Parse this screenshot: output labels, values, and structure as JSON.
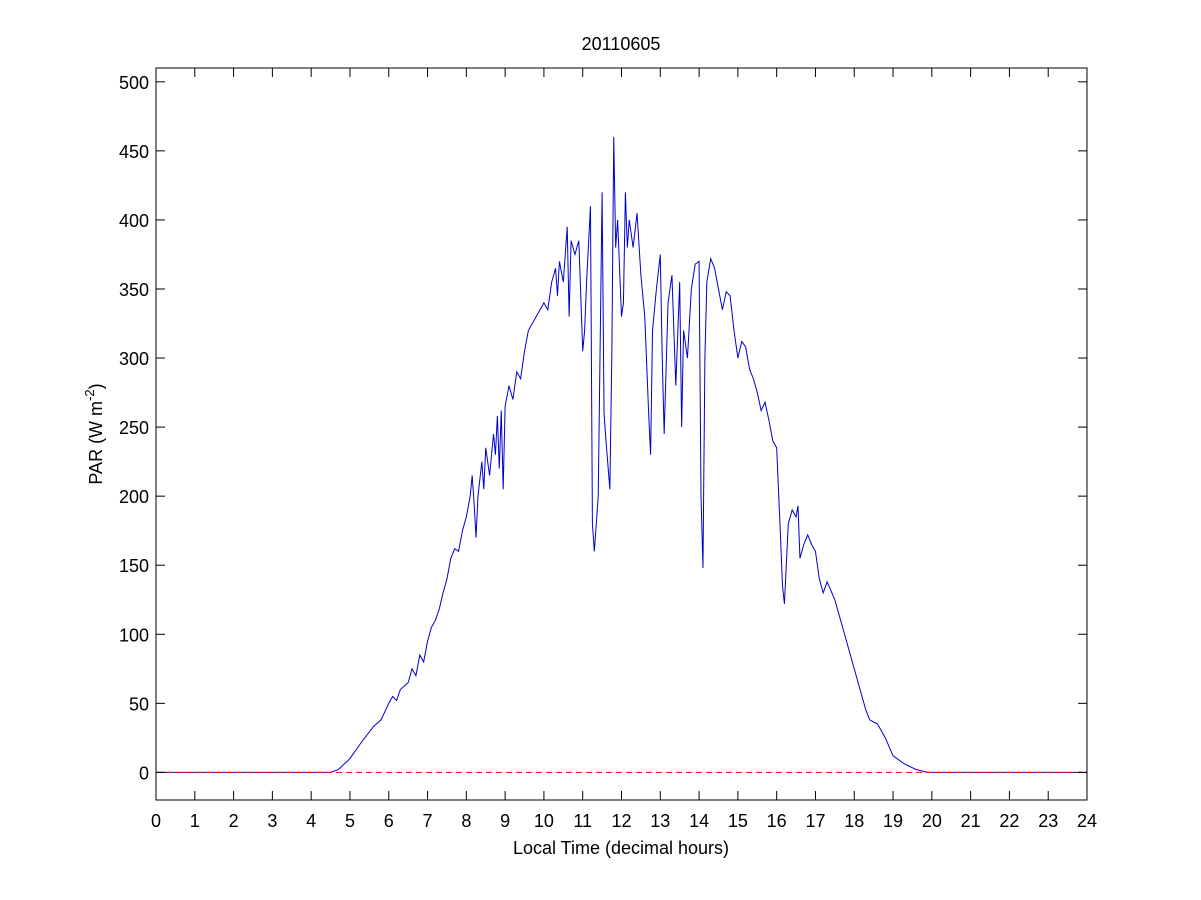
{
  "chart_data": {
    "type": "line",
    "title": "20110605",
    "xlabel": "Local Time (decimal hours)",
    "ylabel": [
      "PAR (W m",
      "-2",
      ")"
    ],
    "xlim": [
      0,
      24
    ],
    "ylim": [
      -20,
      510
    ],
    "xticks": [
      0,
      1,
      2,
      3,
      4,
      5,
      6,
      7,
      8,
      9,
      10,
      11,
      12,
      13,
      14,
      15,
      16,
      17,
      18,
      19,
      20,
      21,
      22,
      23,
      24
    ],
    "yticks": [
      0,
      50,
      100,
      150,
      200,
      250,
      300,
      350,
      400,
      450,
      500
    ],
    "grid": false,
    "series": [
      {
        "color": "#0000cc",
        "linestyle": "solid",
        "x": [
          0,
          4.5,
          4.7,
          5,
          5.3,
          5.6,
          5.8,
          6,
          6.1,
          6.2,
          6.3,
          6.5,
          6.6,
          6.7,
          6.8,
          6.9,
          7,
          7.1,
          7.2,
          7.3,
          7.4,
          7.5,
          7.6,
          7.7,
          7.8,
          7.9,
          8,
          8.1,
          8.15,
          8.2,
          8.25,
          8.3,
          8.4,
          8.45,
          8.5,
          8.6,
          8.7,
          8.75,
          8.8,
          8.85,
          8.9,
          8.95,
          9,
          9.1,
          9.2,
          9.3,
          9.4,
          9.5,
          9.6,
          9.8,
          10,
          10.1,
          10.2,
          10.3,
          10.35,
          10.4,
          10.5,
          10.6,
          10.65,
          10.7,
          10.8,
          10.9,
          11,
          11.05,
          11.1,
          11.2,
          11.25,
          11.3,
          11.4,
          11.5,
          11.55,
          11.6,
          11.7,
          11.75,
          11.8,
          11.85,
          11.9,
          12,
          12.05,
          12.1,
          12.15,
          12.2,
          12.3,
          12.4,
          12.5,
          12.6,
          12.7,
          12.75,
          12.8,
          12.9,
          13,
          13.05,
          13.1,
          13.2,
          13.3,
          13.4,
          13.5,
          13.55,
          13.6,
          13.7,
          13.8,
          13.9,
          14,
          14.05,
          14.1,
          14.15,
          14.2,
          14.3,
          14.4,
          14.5,
          14.6,
          14.7,
          14.8,
          14.9,
          15,
          15.1,
          15.2,
          15.3,
          15.4,
          15.5,
          15.6,
          15.7,
          15.8,
          15.9,
          16,
          16.1,
          16.15,
          16.2,
          16.3,
          16.4,
          16.5,
          16.55,
          16.6,
          16.7,
          16.8,
          16.9,
          17,
          17.1,
          17.2,
          17.3,
          17.5,
          17.7,
          17.9,
          18.1,
          18.3,
          18.4,
          18.6,
          18.8,
          19,
          19.3,
          19.6,
          19.9,
          24
        ],
        "values": [
          0,
          0,
          2,
          10,
          22,
          33,
          38,
          50,
          55,
          52,
          60,
          65,
          75,
          70,
          85,
          80,
          95,
          105,
          110,
          118,
          130,
          140,
          155,
          162,
          160,
          175,
          185,
          200,
          215,
          195,
          170,
          200,
          225,
          205,
          235,
          215,
          245,
          230,
          258,
          220,
          262,
          205,
          265,
          280,
          270,
          290,
          285,
          305,
          320,
          330,
          340,
          335,
          355,
          365,
          345,
          370,
          355,
          395,
          330,
          385,
          375,
          385,
          305,
          320,
          355,
          410,
          180,
          160,
          200,
          420,
          260,
          240,
          205,
          300,
          460,
          380,
          400,
          330,
          340,
          420,
          380,
          400,
          380,
          405,
          360,
          330,
          260,
          230,
          320,
          350,
          375,
          300,
          245,
          340,
          360,
          280,
          355,
          250,
          320,
          300,
          350,
          368,
          370,
          200,
          148,
          300,
          355,
          372,
          365,
          350,
          335,
          348,
          345,
          320,
          300,
          312,
          308,
          292,
          285,
          275,
          262,
          268,
          255,
          240,
          235,
          170,
          135,
          122,
          180,
          190,
          185,
          193,
          155,
          165,
          172,
          165,
          160,
          140,
          130,
          138,
          125,
          105,
          85,
          65,
          45,
          38,
          35,
          25,
          12,
          6,
          2,
          0,
          0
        ]
      },
      {
        "color": "#ff0000",
        "linestyle": "dashed",
        "x": [
          0,
          24
        ],
        "values": [
          0,
          0
        ]
      }
    ]
  }
}
